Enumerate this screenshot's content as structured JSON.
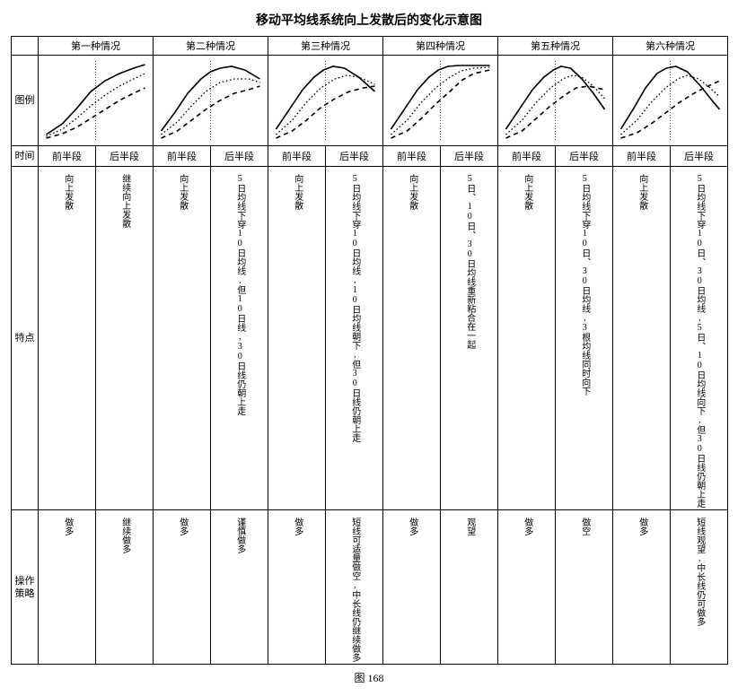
{
  "title": "移动平均线系统向上发散后的变化示意图",
  "figureNo": "图 168",
  "rowLabels": {
    "chart": "图例",
    "time": "时间",
    "feature": "特点",
    "strategy": "操作策略"
  },
  "colHeaders": [
    "第一种情况",
    "第二种情况",
    "第三种情况",
    "第四种情况",
    "第五种情况",
    "第六种情况"
  ],
  "timeSub": {
    "first": "前半段",
    "second": "后半段"
  },
  "charts": {
    "width": 120,
    "height": 92,
    "divX": 60,
    "stroke": "#000000",
    "divStroke": "#000000",
    "styles": {
      "solid": {
        "dash": "",
        "w": 1.6
      },
      "dot": {
        "dash": "1.5 2.5",
        "w": 1.3
      },
      "dash": {
        "dash": "5 4",
        "w": 1.6
      }
    },
    "cases": [
      {
        "curves": [
          {
            "s": "solid",
            "pts": [
              [
                8,
                84
              ],
              [
                25,
                72
              ],
              [
                40,
                55
              ],
              [
                55,
                36
              ],
              [
                70,
                24
              ],
              [
                85,
                16
              ],
              [
                100,
                10
              ],
              [
                112,
                6
              ]
            ]
          },
          {
            "s": "dot",
            "pts": [
              [
                8,
                86
              ],
              [
                25,
                78
              ],
              [
                40,
                66
              ],
              [
                55,
                52
              ],
              [
                70,
                40
              ],
              [
                85,
                30
              ],
              [
                100,
                22
              ],
              [
                112,
                16
              ]
            ]
          },
          {
            "s": "dash",
            "pts": [
              [
                8,
                88
              ],
              [
                25,
                83
              ],
              [
                40,
                76
              ],
              [
                55,
                66
              ],
              [
                70,
                56
              ],
              [
                85,
                46
              ],
              [
                100,
                38
              ],
              [
                112,
                32
              ]
            ]
          }
        ]
      },
      {
        "curves": [
          {
            "s": "solid",
            "pts": [
              [
                8,
                80
              ],
              [
                22,
                60
              ],
              [
                36,
                38
              ],
              [
                50,
                22
              ],
              [
                60,
                14
              ],
              [
                70,
                10
              ],
              [
                82,
                8
              ],
              [
                96,
                12
              ],
              [
                112,
                22
              ]
            ]
          },
          {
            "s": "dot",
            "pts": [
              [
                8,
                84
              ],
              [
                25,
                70
              ],
              [
                40,
                52
              ],
              [
                55,
                36
              ],
              [
                70,
                26
              ],
              [
                85,
                22
              ],
              [
                100,
                22
              ],
              [
                112,
                26
              ]
            ]
          },
          {
            "s": "dash",
            "pts": [
              [
                8,
                88
              ],
              [
                25,
                80
              ],
              [
                40,
                68
              ],
              [
                55,
                56
              ],
              [
                70,
                46
              ],
              [
                85,
                38
              ],
              [
                100,
                34
              ],
              [
                112,
                30
              ]
            ]
          }
        ]
      },
      {
        "curves": [
          {
            "s": "solid",
            "pts": [
              [
                8,
                78
              ],
              [
                22,
                56
              ],
              [
                36,
                34
              ],
              [
                48,
                20
              ],
              [
                58,
                12
              ],
              [
                68,
                8
              ],
              [
                80,
                10
              ],
              [
                95,
                20
              ],
              [
                112,
                36
              ]
            ]
          },
          {
            "s": "dot",
            "pts": [
              [
                8,
                84
              ],
              [
                25,
                68
              ],
              [
                40,
                48
              ],
              [
                55,
                32
              ],
              [
                70,
                22
              ],
              [
                82,
                18
              ],
              [
                95,
                20
              ],
              [
                112,
                28
              ]
            ]
          },
          {
            "s": "dash",
            "pts": [
              [
                8,
                88
              ],
              [
                25,
                80
              ],
              [
                40,
                68
              ],
              [
                55,
                54
              ],
              [
                70,
                44
              ],
              [
                85,
                36
              ],
              [
                100,
                32
              ],
              [
                112,
                30
              ]
            ]
          }
        ]
      },
      {
        "curves": [
          {
            "s": "solid",
            "pts": [
              [
                8,
                78
              ],
              [
                22,
                56
              ],
              [
                36,
                34
              ],
              [
                48,
                20
              ],
              [
                58,
                12
              ],
              [
                68,
                8
              ],
              [
                80,
                7
              ],
              [
                95,
                7
              ],
              [
                112,
                7
              ]
            ]
          },
          {
            "s": "dot",
            "pts": [
              [
                8,
                84
              ],
              [
                25,
                68
              ],
              [
                40,
                48
              ],
              [
                55,
                32
              ],
              [
                70,
                20
              ],
              [
                82,
                13
              ],
              [
                95,
                10
              ],
              [
                112,
                9
              ]
            ]
          },
          {
            "s": "dash",
            "pts": [
              [
                8,
                88
              ],
              [
                25,
                80
              ],
              [
                40,
                66
              ],
              [
                55,
                50
              ],
              [
                70,
                36
              ],
              [
                82,
                24
              ],
              [
                95,
                16
              ],
              [
                112,
                12
              ]
            ]
          }
        ]
      },
      {
        "curves": [
          {
            "s": "solid",
            "pts": [
              [
                8,
                78
              ],
              [
                22,
                56
              ],
              [
                36,
                34
              ],
              [
                48,
                20
              ],
              [
                58,
                12
              ],
              [
                66,
                8
              ],
              [
                76,
                10
              ],
              [
                88,
                22
              ],
              [
                100,
                38
              ],
              [
                112,
                56
              ]
            ]
          },
          {
            "s": "dot",
            "pts": [
              [
                8,
                84
              ],
              [
                25,
                68
              ],
              [
                40,
                48
              ],
              [
                55,
                32
              ],
              [
                68,
                22
              ],
              [
                78,
                18
              ],
              [
                88,
                20
              ],
              [
                100,
                30
              ],
              [
                112,
                44
              ]
            ]
          },
          {
            "s": "dash",
            "pts": [
              [
                8,
                88
              ],
              [
                25,
                80
              ],
              [
                40,
                66
              ],
              [
                55,
                52
              ],
              [
                70,
                40
              ],
              [
                82,
                32
              ],
              [
                95,
                30
              ],
              [
                112,
                34
              ]
            ]
          }
        ]
      },
      {
        "curves": [
          {
            "s": "solid",
            "pts": [
              [
                8,
                78
              ],
              [
                22,
                54
              ],
              [
                34,
                32
              ],
              [
                46,
                16
              ],
              [
                56,
                10
              ],
              [
                66,
                8
              ],
              [
                78,
                14
              ],
              [
                92,
                30
              ],
              [
                104,
                46
              ],
              [
                112,
                56
              ]
            ]
          },
          {
            "s": "dot",
            "pts": [
              [
                8,
                84
              ],
              [
                25,
                68
              ],
              [
                40,
                48
              ],
              [
                55,
                32
              ],
              [
                68,
                22
              ],
              [
                78,
                18
              ],
              [
                90,
                22
              ],
              [
                102,
                32
              ],
              [
                112,
                42
              ]
            ]
          },
          {
            "s": "dash",
            "pts": [
              [
                8,
                88
              ],
              [
                25,
                82
              ],
              [
                40,
                72
              ],
              [
                55,
                60
              ],
              [
                70,
                48
              ],
              [
                85,
                38
              ],
              [
                100,
                30
              ],
              [
                112,
                24
              ]
            ]
          }
        ]
      }
    ]
  },
  "features": [
    {
      "first": [
        "向上发散"
      ],
      "second": [
        "继续向上发散"
      ]
    },
    {
      "first": [
        "向上发散"
      ],
      "second": [
        "5日均线下穿10日均线,但10日线,30日线仍朝上走"
      ]
    },
    {
      "first": [
        "向上发散"
      ],
      "second": [
        "5日均线下穿10日均线,10日均线朝下,但30日线仍朝上走"
      ]
    },
    {
      "first": [
        "向上发散"
      ],
      "second": [
        "5日、10日、30日均线重新粘合在一起"
      ]
    },
    {
      "first": [
        "向上发散"
      ],
      "second": [
        "5日均线下穿10日、30日均线,3根均线同时向下"
      ]
    },
    {
      "first": [
        "向上发散"
      ],
      "second": [
        "5日均线下穿10日、30日均线,5日、10日均线向下,但30日线仍朝上走"
      ]
    }
  ],
  "strategies": [
    {
      "first": [
        "做多"
      ],
      "second": [
        "继续做多"
      ]
    },
    {
      "first": [
        "做多"
      ],
      "second": [
        "谨慎做多"
      ]
    },
    {
      "first": [
        "做多"
      ],
      "second": [
        "短线可适量做空,中长线仍继续做多"
      ]
    },
    {
      "first": [
        "做多"
      ],
      "second": [
        "观望"
      ]
    },
    {
      "first": [
        "做多"
      ],
      "second": [
        "做空"
      ]
    },
    {
      "first": [
        "做多"
      ],
      "second": [
        "短线观望,中长线仍可做多"
      ]
    }
  ]
}
